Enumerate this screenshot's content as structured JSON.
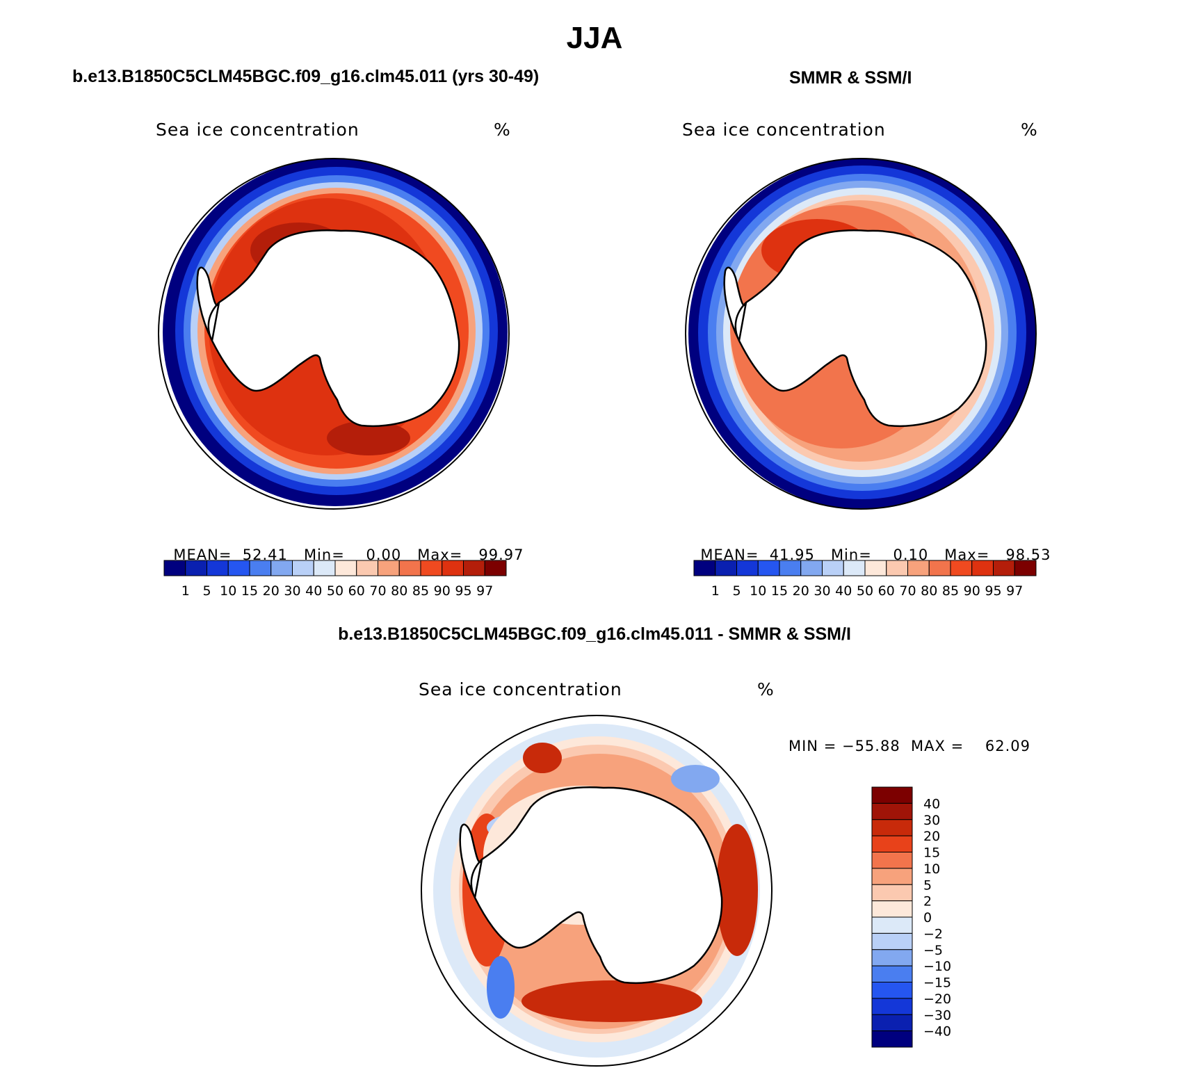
{
  "page": {
    "title": "JJA"
  },
  "colors": {
    "cb_conc": [
      "#00007f",
      "#0a20b0",
      "#1437d8",
      "#2556f0",
      "#4a7ef0",
      "#82a8f0",
      "#b9d0f7",
      "#dce9f8",
      "#fde8da",
      "#fbc9b0",
      "#f7a27c",
      "#f2744c",
      "#f04a20",
      "#de3210",
      "#b41e0a",
      "#7c0000"
    ],
    "cb_diff": [
      "#7c0000",
      "#a01408",
      "#c82a0a",
      "#e8421a",
      "#f2744c",
      "#f7a27c",
      "#fbc9b0",
      "#fde8da",
      "#dce9f8",
      "#b9d0f7",
      "#82a8f0",
      "#4a7ef0",
      "#2556f0",
      "#1437d8",
      "#0a20b0",
      "#00007f"
    ]
  },
  "panels": {
    "model": {
      "heading": "b.e13.B1850C5CLM45BGC.f09_g16.clm45.011 (yrs 30-49)",
      "var_label": "Sea ice concentration",
      "units": "%",
      "stats": {
        "mean_label": "MEAN=",
        "mean": "52.41",
        "min_label": "Min=",
        "min": "0.00",
        "max_label": "Max=",
        "max": "99.97"
      }
    },
    "obs": {
      "heading": "SMMR & SSM/I",
      "var_label": "Sea ice concentration",
      "units": "%",
      "stats": {
        "mean_label": "MEAN=",
        "mean": "41.95",
        "min_label": "Min=",
        "min": "0.10",
        "max_label": "Max=",
        "max": "98.53"
      }
    },
    "diff": {
      "heading": "b.e13.B1850C5CLM45BGC.f09_g16.clm45.011 - SMMR & SSM/I",
      "var_label": "Sea ice concentration",
      "units": "%",
      "minmax": "MIN = −55.88  MAX =    62.09"
    }
  },
  "conc_colorbar_labels": [
    "1",
    "5",
    "10",
    "15",
    "20",
    "30",
    "40",
    "50",
    "60",
    "70",
    "80",
    "85",
    "90",
    "95",
    "97"
  ],
  "diff_colorbar_labels": [
    "40",
    "30",
    "20",
    "15",
    "10",
    "5",
    "2",
    "0",
    "−2",
    "−5",
    "−10",
    "−15",
    "−20",
    "−30",
    "−40"
  ]
}
